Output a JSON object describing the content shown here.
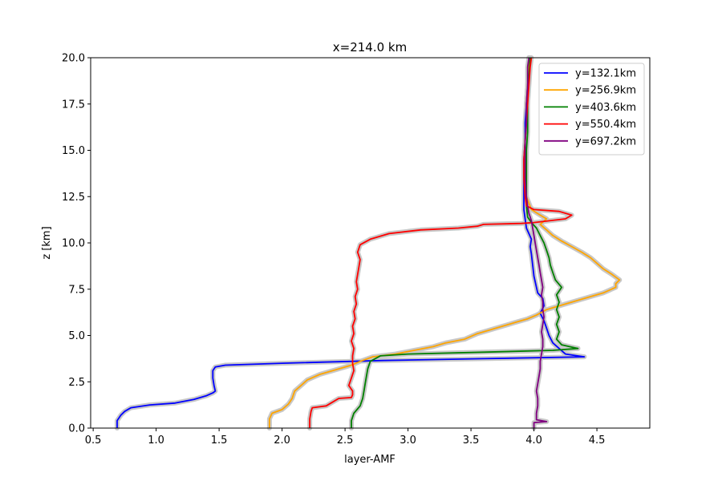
{
  "chart_data": {
    "type": "line",
    "title": "x=214.0 km",
    "xlabel": "layer-AMF",
    "ylabel": "z [km]",
    "xlim": [
      0.48,
      4.92
    ],
    "ylim": [
      0,
      20
    ],
    "xticks": [
      "0.5",
      "1.0",
      "1.5",
      "2.0",
      "2.5",
      "3.0",
      "3.5",
      "4.0",
      "4.5"
    ],
    "yticks": [
      "0.0",
      "2.5",
      "5.0",
      "7.5",
      "10.0",
      "12.5",
      "15.0",
      "17.5",
      "20.0"
    ],
    "grid": false,
    "legend_position": "top-right",
    "uncertainty_band_color": "#c8c8c8",
    "series": [
      {
        "name": "y=132.1km",
        "color": "#0000ff",
        "points": [
          [
            0.69,
            0.0
          ],
          [
            0.69,
            0.4
          ],
          [
            0.72,
            0.7
          ],
          [
            0.75,
            0.9
          ],
          [
            0.8,
            1.1
          ],
          [
            0.95,
            1.25
          ],
          [
            1.15,
            1.35
          ],
          [
            1.3,
            1.55
          ],
          [
            1.4,
            1.75
          ],
          [
            1.45,
            1.9
          ],
          [
            1.47,
            2.0
          ],
          [
            1.46,
            2.3
          ],
          [
            1.45,
            2.7
          ],
          [
            1.45,
            3.1
          ],
          [
            1.47,
            3.3
          ],
          [
            1.55,
            3.4
          ],
          [
            2.0,
            3.5
          ],
          [
            2.8,
            3.65
          ],
          [
            3.6,
            3.75
          ],
          [
            4.4,
            3.85
          ],
          [
            4.25,
            4.0
          ],
          [
            4.2,
            4.3
          ],
          [
            4.15,
            4.6
          ],
          [
            4.12,
            5.0
          ],
          [
            4.1,
            5.4
          ],
          [
            4.08,
            5.8
          ],
          [
            4.05,
            6.2
          ],
          [
            4.08,
            6.6
          ],
          [
            4.07,
            7.0
          ],
          [
            4.03,
            7.3
          ],
          [
            4.02,
            7.6
          ],
          [
            4.0,
            8.2
          ],
          [
            3.99,
            8.8
          ],
          [
            3.98,
            9.4
          ],
          [
            3.97,
            9.8
          ],
          [
            3.98,
            10.2
          ],
          [
            3.96,
            10.5
          ],
          [
            3.94,
            10.8
          ],
          [
            3.93,
            11.3
          ],
          [
            3.92,
            11.8
          ],
          [
            3.92,
            12.5
          ],
          [
            3.92,
            13.5
          ],
          [
            3.92,
            14.5
          ],
          [
            3.93,
            15.5
          ],
          [
            3.93,
            16.5
          ],
          [
            3.94,
            17.5
          ],
          [
            3.95,
            18.5
          ],
          [
            3.96,
            19.5
          ],
          [
            3.97,
            20.0
          ]
        ]
      },
      {
        "name": "y=256.9km",
        "color": "#ffa500",
        "points": [
          [
            1.9,
            0.0
          ],
          [
            1.9,
            0.5
          ],
          [
            1.92,
            0.8
          ],
          [
            2.0,
            1.0
          ],
          [
            2.05,
            1.3
          ],
          [
            2.08,
            1.6
          ],
          [
            2.1,
            2.0
          ],
          [
            2.15,
            2.3
          ],
          [
            2.2,
            2.6
          ],
          [
            2.3,
            2.9
          ],
          [
            2.45,
            3.2
          ],
          [
            2.55,
            3.4
          ],
          [
            2.62,
            3.6
          ],
          [
            2.72,
            3.85
          ],
          [
            2.9,
            4.0
          ],
          [
            3.05,
            4.2
          ],
          [
            3.2,
            4.4
          ],
          [
            3.3,
            4.6
          ],
          [
            3.45,
            4.8
          ],
          [
            3.55,
            5.1
          ],
          [
            3.7,
            5.4
          ],
          [
            3.85,
            5.7
          ],
          [
            3.95,
            5.9
          ],
          [
            4.02,
            6.1
          ],
          [
            4.1,
            6.4
          ],
          [
            4.3,
            6.8
          ],
          [
            4.55,
            7.3
          ],
          [
            4.65,
            7.6
          ],
          [
            4.65,
            7.8
          ],
          [
            4.68,
            8.0
          ],
          [
            4.62,
            8.3
          ],
          [
            4.55,
            8.6
          ],
          [
            4.5,
            8.9
          ],
          [
            4.45,
            9.2
          ],
          [
            4.38,
            9.5
          ],
          [
            4.3,
            9.8
          ],
          [
            4.22,
            10.1
          ],
          [
            4.15,
            10.4
          ],
          [
            4.1,
            10.7
          ],
          [
            4.05,
            11.0
          ],
          [
            4.1,
            11.3
          ],
          [
            4.05,
            11.5
          ],
          [
            3.98,
            11.8
          ],
          [
            3.94,
            12.5
          ],
          [
            3.93,
            13.5
          ],
          [
            3.93,
            14.5
          ],
          [
            3.93,
            15.5
          ],
          [
            3.94,
            16.5
          ],
          [
            3.94,
            17.5
          ],
          [
            3.95,
            18.5
          ],
          [
            3.96,
            19.5
          ],
          [
            3.96,
            20.0
          ]
        ]
      },
      {
        "name": "y=403.6km",
        "color": "#008000",
        "points": [
          [
            2.55,
            0.0
          ],
          [
            2.55,
            0.4
          ],
          [
            2.57,
            0.8
          ],
          [
            2.62,
            1.2
          ],
          [
            2.64,
            1.6
          ],
          [
            2.65,
            2.0
          ],
          [
            2.66,
            2.4
          ],
          [
            2.67,
            2.8
          ],
          [
            2.68,
            3.2
          ],
          [
            2.7,
            3.6
          ],
          [
            2.78,
            3.9
          ],
          [
            3.0,
            4.0
          ],
          [
            3.6,
            4.1
          ],
          [
            4.15,
            4.2
          ],
          [
            4.35,
            4.3
          ],
          [
            4.22,
            4.5
          ],
          [
            4.18,
            4.8
          ],
          [
            4.2,
            5.2
          ],
          [
            4.18,
            5.6
          ],
          [
            4.2,
            6.0
          ],
          [
            4.18,
            6.4
          ],
          [
            4.2,
            6.8
          ],
          [
            4.18,
            7.2
          ],
          [
            4.22,
            7.6
          ],
          [
            4.17,
            8.0
          ],
          [
            4.15,
            8.4
          ],
          [
            4.13,
            8.8
          ],
          [
            4.12,
            9.2
          ],
          [
            4.1,
            9.6
          ],
          [
            4.08,
            10.0
          ],
          [
            4.05,
            10.4
          ],
          [
            4.02,
            10.8
          ],
          [
            3.98,
            11.1
          ],
          [
            3.95,
            11.4
          ],
          [
            3.94,
            12.0
          ],
          [
            3.94,
            13.0
          ],
          [
            3.94,
            14.0
          ],
          [
            3.94,
            15.0
          ],
          [
            3.95,
            16.0
          ],
          [
            3.95,
            17.0
          ],
          [
            3.95,
            18.0
          ],
          [
            3.96,
            19.0
          ],
          [
            3.97,
            20.0
          ]
        ]
      },
      {
        "name": "y=550.4km",
        "color": "#ff0000",
        "points": [
          [
            2.22,
            0.0
          ],
          [
            2.22,
            0.5
          ],
          [
            2.23,
            0.9
          ],
          [
            2.24,
            1.1
          ],
          [
            2.35,
            1.2
          ],
          [
            2.4,
            1.4
          ],
          [
            2.45,
            1.6
          ],
          [
            2.55,
            1.65
          ],
          [
            2.56,
            1.8
          ],
          [
            2.56,
            2.0
          ],
          [
            2.53,
            2.3
          ],
          [
            2.55,
            2.7
          ],
          [
            2.57,
            3.1
          ],
          [
            2.56,
            3.5
          ],
          [
            2.56,
            3.9
          ],
          [
            2.57,
            4.3
          ],
          [
            2.55,
            4.7
          ],
          [
            2.57,
            5.1
          ],
          [
            2.56,
            5.5
          ],
          [
            2.58,
            5.9
          ],
          [
            2.57,
            6.3
          ],
          [
            2.59,
            6.7
          ],
          [
            2.58,
            7.1
          ],
          [
            2.6,
            7.5
          ],
          [
            2.59,
            7.9
          ],
          [
            2.6,
            8.3
          ],
          [
            2.61,
            8.7
          ],
          [
            2.62,
            9.1
          ],
          [
            2.6,
            9.5
          ],
          [
            2.62,
            9.9
          ],
          [
            2.7,
            10.2
          ],
          [
            2.85,
            10.5
          ],
          [
            3.1,
            10.7
          ],
          [
            3.4,
            10.8
          ],
          [
            3.55,
            10.9
          ],
          [
            3.6,
            11.0
          ],
          [
            3.9,
            11.05
          ],
          [
            4.0,
            11.1
          ],
          [
            4.25,
            11.3
          ],
          [
            4.3,
            11.5
          ],
          [
            4.2,
            11.7
          ],
          [
            4.0,
            11.8
          ],
          [
            3.94,
            12.0
          ],
          [
            3.93,
            12.5
          ],
          [
            3.92,
            13.5
          ],
          [
            3.92,
            14.5
          ],
          [
            3.93,
            15.5
          ],
          [
            3.94,
            16.5
          ],
          [
            3.95,
            17.5
          ],
          [
            3.96,
            18.5
          ],
          [
            3.97,
            19.5
          ],
          [
            3.98,
            20.0
          ]
        ]
      },
      {
        "name": "y=697.2km",
        "color": "#800080",
        "points": [
          [
            4.0,
            0.0
          ],
          [
            4.0,
            0.3
          ],
          [
            4.1,
            0.35
          ],
          [
            4.02,
            0.45
          ],
          [
            4.02,
            0.8
          ],
          [
            4.03,
            1.2
          ],
          [
            4.03,
            1.6
          ],
          [
            4.02,
            2.0
          ],
          [
            4.03,
            2.4
          ],
          [
            4.04,
            2.8
          ],
          [
            4.05,
            3.2
          ],
          [
            4.05,
            3.6
          ],
          [
            4.06,
            4.0
          ],
          [
            4.07,
            4.4
          ],
          [
            4.07,
            4.8
          ],
          [
            4.06,
            5.2
          ],
          [
            4.07,
            5.6
          ],
          [
            4.08,
            6.0
          ],
          [
            4.07,
            6.4
          ],
          [
            4.07,
            6.8
          ],
          [
            4.06,
            7.2
          ],
          [
            4.07,
            7.6
          ],
          [
            4.06,
            8.0
          ],
          [
            4.05,
            8.4
          ],
          [
            4.04,
            8.8
          ],
          [
            4.03,
            9.2
          ],
          [
            4.02,
            9.6
          ],
          [
            4.01,
            10.0
          ],
          [
            4.0,
            10.4
          ],
          [
            3.99,
            10.8
          ],
          [
            3.98,
            11.2
          ],
          [
            3.96,
            11.6
          ],
          [
            3.95,
            12.0
          ],
          [
            3.94,
            12.5
          ],
          [
            3.93,
            13.5
          ],
          [
            3.93,
            14.5
          ],
          [
            3.93,
            15.5
          ],
          [
            3.94,
            16.5
          ],
          [
            3.94,
            17.5
          ],
          [
            3.95,
            18.5
          ],
          [
            3.95,
            19.5
          ],
          [
            3.96,
            20.0
          ]
        ]
      }
    ]
  }
}
